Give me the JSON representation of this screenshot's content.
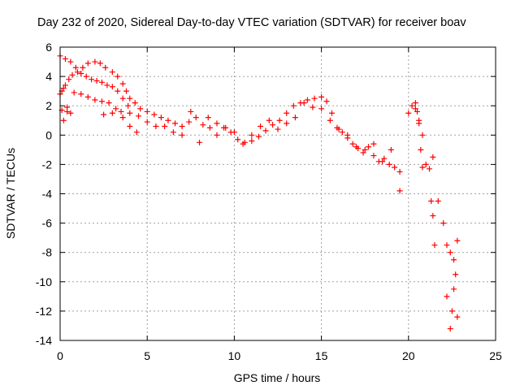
{
  "chart_data": {
    "type": "scatter",
    "title": "Day 232 of 2020, Sidereal Day-to-day VTEC variation (SDTVAR) for receiver boav",
    "xlabel": "GPS time / hours",
    "ylabel": "SDTVAR / TECUs",
    "xlim": [
      0,
      25
    ],
    "ylim": [
      -14,
      6
    ],
    "xticks": [
      0,
      5,
      10,
      15,
      20,
      25
    ],
    "yticks": [
      -14,
      -12,
      -10,
      -8,
      -6,
      -4,
      -2,
      0,
      2,
      4,
      6
    ],
    "grid": true,
    "marker": "+",
    "color": "#ff0000",
    "series": [
      {
        "name": "SDTVAR",
        "x": [
          0.0,
          0.1,
          0.2,
          0.3,
          0.5,
          0.7,
          1.0,
          1.3,
          1.6,
          2.0,
          2.3,
          2.6,
          3.0,
          3.3,
          3.6,
          3.8,
          4.0,
          4.3,
          4.6,
          5.0,
          5.4,
          5.8,
          6.2,
          6.6,
          7.0,
          7.4,
          7.8,
          8.2,
          8.6,
          9.0,
          9.4,
          9.8,
          10.2,
          10.6,
          11.0,
          11.4,
          11.8,
          12.2,
          12.6,
          13.0,
          13.4,
          13.8,
          14.2,
          14.6,
          15.0,
          15.3,
          15.6,
          15.9,
          16.2,
          16.5,
          16.8,
          17.1,
          17.4,
          17.7,
          18.0,
          18.3,
          18.6,
          18.9,
          19.2,
          19.5,
          20.0,
          20.2,
          20.4,
          20.6,
          20.8,
          21.0,
          21.2,
          21.4,
          21.7,
          22.0,
          22.2,
          22.4,
          22.6,
          22.8,
          0.0,
          0.3,
          0.6,
          0.9,
          1.2,
          1.5,
          1.8,
          2.1,
          2.4,
          2.7,
          3.0,
          3.3,
          3.6,
          3.9,
          0.1,
          0.4,
          0.8,
          1.2,
          1.6,
          2.0,
          2.4,
          2.8,
          3.2,
          3.6,
          4.0,
          4.4,
          0.2,
          0.4,
          0.6,
          2.5,
          3.0,
          3.5,
          4.0,
          4.5,
          5.0,
          5.5,
          6.0,
          6.5,
          7.0,
          7.5,
          8.0,
          8.5,
          9.0,
          9.5,
          10.0,
          10.5,
          11.0,
          11.5,
          12.0,
          12.5,
          13.0,
          13.5,
          14.0,
          14.5,
          15.0,
          15.5,
          16.0,
          16.5,
          17.0,
          17.5,
          18.0,
          18.5,
          19.0,
          19.5,
          20.4,
          20.5,
          20.6,
          20.7,
          20.8,
          21.3,
          21.4,
          21.5,
          22.2,
          22.4,
          22.5,
          22.6,
          22.7,
          22.8
        ],
        "y": [
          2.8,
          3.0,
          3.2,
          3.4,
          3.8,
          4.1,
          4.3,
          4.6,
          4.9,
          5.0,
          4.9,
          4.6,
          4.3,
          4.0,
          3.5,
          3.0,
          2.5,
          2.2,
          1.8,
          1.6,
          1.4,
          1.2,
          1.0,
          0.8,
          0.6,
          0.9,
          1.2,
          0.7,
          0.5,
          0.8,
          0.5,
          0.2,
          -0.3,
          -0.5,
          -0.4,
          -0.1,
          0.3,
          0.7,
          1.0,
          1.5,
          2.0,
          2.2,
          2.4,
          2.5,
          2.6,
          2.3,
          1.5,
          0.5,
          0.2,
          -0.2,
          -0.6,
          -0.9,
          -1.2,
          -0.8,
          -1.4,
          -1.8,
          -1.6,
          -2.0,
          -2.2,
          -2.5,
          1.5,
          2.0,
          1.8,
          1.0,
          0.0,
          -2.0,
          -2.3,
          -1.5,
          -4.5,
          -6.0,
          -7.5,
          -8.0,
          -8.5,
          -7.2,
          5.4,
          5.2,
          5.0,
          4.6,
          4.2,
          4.0,
          3.8,
          3.7,
          3.6,
          3.4,
          3.3,
          3.0,
          2.5,
          2.0,
          1.7,
          1.9,
          2.9,
          2.8,
          2.6,
          2.4,
          2.3,
          2.2,
          1.8,
          1.2,
          0.6,
          0.2,
          1.0,
          1.6,
          1.5,
          1.4,
          1.5,
          1.6,
          1.5,
          1.3,
          0.9,
          0.6,
          0.6,
          0.2,
          0.0,
          1.6,
          -0.5,
          1.2,
          0.0,
          0.5,
          0.2,
          -0.6,
          0.0,
          0.6,
          1.0,
          0.4,
          0.8,
          1.2,
          2.2,
          1.9,
          1.8,
          1.0,
          0.4,
          0.0,
          -0.8,
          -1.0,
          -0.6,
          -1.8,
          -1.0,
          -3.8,
          2.2,
          1.6,
          0.8,
          -1.0,
          -2.2,
          -4.5,
          -5.5,
          -7.5,
          -11.0,
          -13.2,
          -12.0,
          -10.5,
          -9.5,
          -12.4
        ]
      }
    ]
  }
}
